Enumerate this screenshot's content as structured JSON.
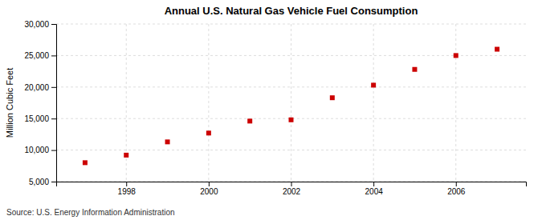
{
  "chart_data": {
    "type": "scatter",
    "title": "Annual U.S. Natural Gas Vehicle Fuel Consumption",
    "ylabel": "Million Cubic Feet",
    "annotations": [
      "Source: U.S. Energy Information Administration"
    ],
    "x": [
      1997,
      1998,
      1999,
      2000,
      2001,
      2002,
      2003,
      2004,
      2005,
      2006,
      2007
    ],
    "values": [
      8000,
      9200,
      11300,
      12700,
      14600,
      14800,
      18300,
      20300,
      22800,
      25000,
      26000
    ],
    "color": "#cc0000",
    "marker": "square",
    "xlim": [
      1996.3,
      2007.7
    ],
    "xticks": [
      1998,
      2000,
      2002,
      2004,
      2006
    ],
    "ylim": [
      5000,
      30000
    ],
    "yticks": [
      {
        "value": 5000,
        "label": "5,000"
      },
      {
        "value": 10000,
        "label": "10,000"
      },
      {
        "value": 15000,
        "label": "15,000"
      },
      {
        "value": 20000,
        "label": "20,000"
      },
      {
        "value": 25000,
        "label": "25,000"
      },
      {
        "value": 30000,
        "label": "30,000"
      }
    ],
    "grid": true
  }
}
